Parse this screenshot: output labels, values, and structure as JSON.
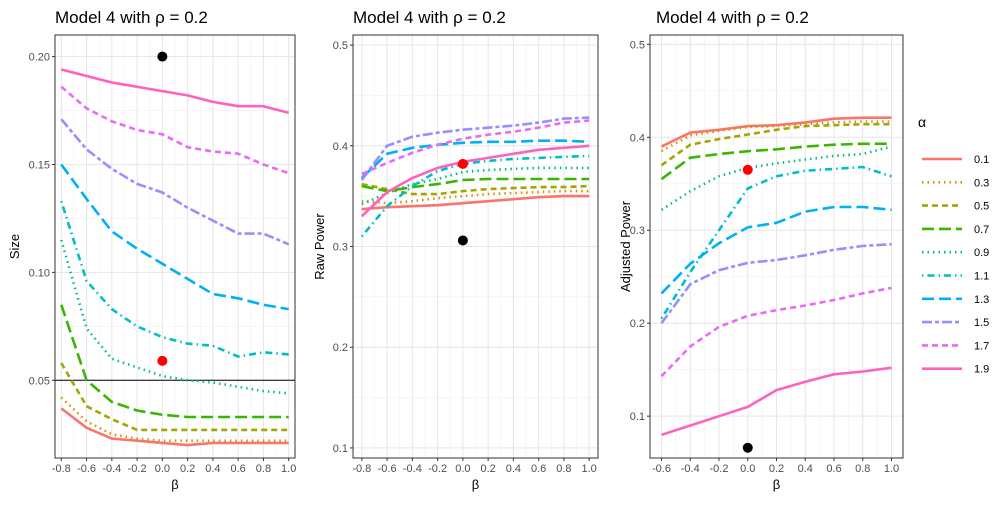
{
  "chart_data": [
    {
      "type": "line",
      "title": "Model 4 with ρ =  0.2",
      "xlabel": "β",
      "ylabel": "Size",
      "xlim": [
        -0.85,
        1.05
      ],
      "ylim": [
        0.014,
        0.21
      ],
      "xticks": [
        "-0.8",
        "-0.6",
        "-0.4",
        "-0.2",
        "0.0",
        "0.2",
        "0.4",
        "0.6",
        "0.8",
        "1.0"
      ],
      "yticks": [
        "0.05",
        "0.10",
        "0.15",
        "0.20"
      ],
      "grid": true,
      "hline": 0.05,
      "x": [
        -0.8,
        -0.6,
        -0.4,
        -0.2,
        0.0,
        0.2,
        0.4,
        0.6,
        0.8,
        1.0
      ],
      "series": [
        {
          "name": "0.1",
          "values": [
            0.037,
            0.028,
            0.023,
            0.022,
            0.021,
            0.02,
            0.021,
            0.021,
            0.021,
            0.021
          ]
        },
        {
          "name": "0.3",
          "values": [
            0.042,
            0.031,
            0.025,
            0.023,
            0.022,
            0.022,
            0.022,
            0.022,
            0.022,
            0.022
          ]
        },
        {
          "name": "0.5",
          "values": [
            0.058,
            0.038,
            0.032,
            0.027,
            0.027,
            0.027,
            0.027,
            0.027,
            0.027,
            0.027
          ]
        },
        {
          "name": "0.7",
          "values": [
            0.085,
            0.05,
            0.04,
            0.036,
            0.034,
            0.033,
            0.033,
            0.033,
            0.033,
            0.033
          ]
        },
        {
          "name": "0.9",
          "values": [
            0.115,
            0.074,
            0.06,
            0.056,
            0.052,
            0.05,
            0.049,
            0.047,
            0.045,
            0.044
          ]
        },
        {
          "name": "1.1",
          "values": [
            0.133,
            0.096,
            0.083,
            0.075,
            0.07,
            0.067,
            0.066,
            0.061,
            0.063,
            0.062
          ]
        },
        {
          "name": "1.3",
          "values": [
            0.15,
            0.134,
            0.119,
            0.111,
            0.104,
            0.097,
            0.09,
            0.088,
            0.085,
            0.083
          ]
        },
        {
          "name": "1.5",
          "values": [
            0.171,
            0.157,
            0.148,
            0.141,
            0.137,
            0.13,
            0.124,
            0.118,
            0.118,
            0.113
          ]
        },
        {
          "name": "1.7",
          "values": [
            0.186,
            0.176,
            0.17,
            0.166,
            0.164,
            0.158,
            0.156,
            0.155,
            0.15,
            0.146
          ]
        },
        {
          "name": "1.9",
          "values": [
            0.194,
            0.191,
            0.188,
            0.186,
            0.184,
            0.182,
            0.179,
            0.177,
            0.177,
            0.174
          ]
        }
      ],
      "points": [
        {
          "x": 0.0,
          "y": 0.2,
          "color": "#000000"
        },
        {
          "x": 0.0,
          "y": 0.059,
          "color": "#ff0000"
        }
      ]
    },
    {
      "type": "line",
      "title": "Model 4 with ρ =  0.2",
      "xlabel": "β",
      "ylabel": "Raw Power",
      "xlim": [
        -0.87,
        1.07
      ],
      "ylim": [
        0.09,
        0.51
      ],
      "xticks": [
        "-0.8",
        "-0.6",
        "-0.4",
        "-0.2",
        "0.0",
        "0.2",
        "0.4",
        "0.6",
        "0.8",
        "1.0"
      ],
      "yticks": [
        "0.1",
        "0.2",
        "0.3",
        "0.4",
        "0.5"
      ],
      "grid": true,
      "x": [
        -0.8,
        -0.6,
        -0.4,
        -0.2,
        0.0,
        0.2,
        0.4,
        0.6,
        0.8,
        1.0
      ],
      "series": [
        {
          "name": "0.1",
          "values": [
            0.337,
            0.339,
            0.34,
            0.341,
            0.343,
            0.345,
            0.347,
            0.349,
            0.35,
            0.35
          ]
        },
        {
          "name": "0.3",
          "values": [
            0.345,
            0.343,
            0.345,
            0.348,
            0.35,
            0.352,
            0.353,
            0.354,
            0.355,
            0.355
          ]
        },
        {
          "name": "0.5",
          "values": [
            0.362,
            0.357,
            0.352,
            0.352,
            0.355,
            0.357,
            0.358,
            0.359,
            0.359,
            0.36
          ]
        },
        {
          "name": "0.7",
          "values": [
            0.36,
            0.355,
            0.359,
            0.362,
            0.366,
            0.367,
            0.367,
            0.367,
            0.367,
            0.367
          ]
        },
        {
          "name": "0.9",
          "values": [
            0.342,
            0.353,
            0.362,
            0.367,
            0.374,
            0.376,
            0.377,
            0.378,
            0.378,
            0.378
          ]
        },
        {
          "name": "1.1",
          "values": [
            0.31,
            0.34,
            0.36,
            0.375,
            0.382,
            0.385,
            0.387,
            0.388,
            0.389,
            0.39
          ]
        },
        {
          "name": "1.3",
          "values": [
            0.368,
            0.392,
            0.398,
            0.401,
            0.403,
            0.404,
            0.404,
            0.405,
            0.405,
            0.404
          ]
        },
        {
          "name": "1.5",
          "values": [
            0.366,
            0.4,
            0.409,
            0.413,
            0.416,
            0.418,
            0.42,
            0.423,
            0.427,
            0.428
          ]
        },
        {
          "name": "1.7",
          "values": [
            0.372,
            0.383,
            0.393,
            0.401,
            0.407,
            0.411,
            0.414,
            0.418,
            0.423,
            0.425
          ]
        },
        {
          "name": "1.9",
          "values": [
            0.33,
            0.354,
            0.368,
            0.378,
            0.384,
            0.388,
            0.392,
            0.396,
            0.398,
            0.4
          ]
        }
      ],
      "points": [
        {
          "x": 0.0,
          "y": 0.306,
          "color": "#000000"
        },
        {
          "x": 0.0,
          "y": 0.382,
          "color": "#ff0000"
        }
      ]
    },
    {
      "type": "line",
      "title": "Model 4 with ρ =  0.2",
      "xlabel": "β",
      "ylabel": "Adjusted Power",
      "xlim": [
        -0.68,
        1.08
      ],
      "ylim": [
        0.055,
        0.51
      ],
      "xticks": [
        "-0.6",
        "-0.4",
        "-0.2",
        "0.0",
        "0.2",
        "0.4",
        "0.6",
        "0.8",
        "1.0"
      ],
      "yticks": [
        "0.1",
        "0.2",
        "0.3",
        "0.4",
        "0.5"
      ],
      "grid": true,
      "x": [
        -0.6,
        -0.4,
        -0.2,
        0.0,
        0.2,
        0.4,
        0.6,
        0.8,
        1.0
      ],
      "series": [
        {
          "name": "0.1",
          "values": [
            0.39,
            0.405,
            0.408,
            0.412,
            0.413,
            0.416,
            0.42,
            0.421,
            0.421
          ]
        },
        {
          "name": "0.3",
          "values": [
            0.385,
            0.402,
            0.407,
            0.411,
            0.412,
            0.414,
            0.416,
            0.417,
            0.417
          ]
        },
        {
          "name": "0.5",
          "values": [
            0.37,
            0.392,
            0.398,
            0.403,
            0.408,
            0.412,
            0.413,
            0.414,
            0.414
          ]
        },
        {
          "name": "0.7",
          "values": [
            0.355,
            0.378,
            0.382,
            0.385,
            0.387,
            0.39,
            0.392,
            0.393,
            0.393
          ]
        },
        {
          "name": "0.9",
          "values": [
            0.322,
            0.342,
            0.358,
            0.367,
            0.372,
            0.376,
            0.38,
            0.382,
            0.39
          ]
        },
        {
          "name": "1.1",
          "values": [
            0.205,
            0.255,
            0.3,
            0.345,
            0.358,
            0.364,
            0.366,
            0.368,
            0.358
          ]
        },
        {
          "name": "1.3",
          "values": [
            0.232,
            0.264,
            0.286,
            0.303,
            0.308,
            0.32,
            0.325,
            0.325,
            0.322
          ]
        },
        {
          "name": "1.5",
          "values": [
            0.2,
            0.242,
            0.257,
            0.265,
            0.268,
            0.273,
            0.279,
            0.283,
            0.285
          ]
        },
        {
          "name": "1.7",
          "values": [
            0.143,
            0.175,
            0.196,
            0.208,
            0.214,
            0.219,
            0.225,
            0.232,
            0.238
          ]
        },
        {
          "name": "1.9",
          "values": [
            0.08,
            0.09,
            0.1,
            0.11,
            0.128,
            0.137,
            0.145,
            0.148,
            0.152
          ]
        }
      ],
      "points": [
        {
          "x": 0.0,
          "y": 0.066,
          "color": "#000000"
        },
        {
          "x": 0.0,
          "y": 0.365,
          "color": "#ff0000"
        }
      ]
    }
  ],
  "legend": {
    "title": "α",
    "placement": "right",
    "entries": [
      {
        "label": "0.1",
        "color": "#F8766D",
        "dash": "solid"
      },
      {
        "label": "0.3",
        "color": "#D89000",
        "dash": "dotted"
      },
      {
        "label": "0.5",
        "color": "#A3A500",
        "dash": "dashed"
      },
      {
        "label": "0.7",
        "color": "#39B600",
        "dash": "longdash"
      },
      {
        "label": "0.9",
        "color": "#00BF7D",
        "dash": "dotted"
      },
      {
        "label": "1.1",
        "color": "#00BFC4",
        "dash": "dotdash"
      },
      {
        "label": "1.3",
        "color": "#00B0F6",
        "dash": "longdash"
      },
      {
        "label": "1.5",
        "color": "#9590FF",
        "dash": "twodash"
      },
      {
        "label": "1.7",
        "color": "#E76BF3",
        "dash": "dashed"
      },
      {
        "label": "1.9",
        "color": "#FF62BC",
        "dash": "solid"
      }
    ]
  }
}
